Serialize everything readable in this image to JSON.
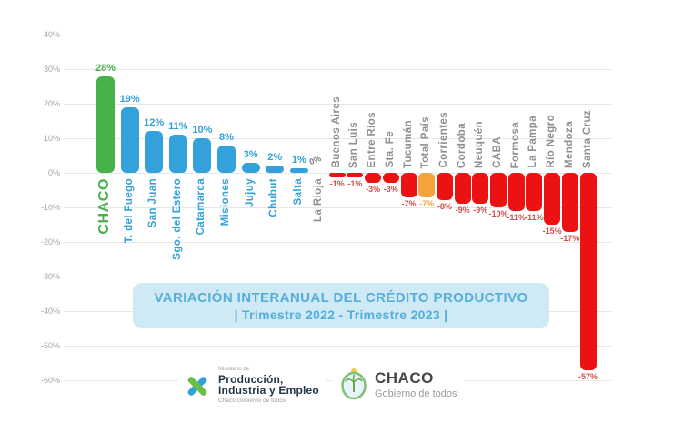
{
  "chart_data": {
    "type": "bar",
    "title": "VARIACIÓN INTERANUAL DEL CRÉDITO PRODUCTIVO",
    "subtitle": "| Trimestre 2022 - Trimestre 2023 |",
    "ylim": [
      -60,
      40
    ],
    "ytick_step": 10,
    "ytick_suffix": "%",
    "grid": true,
    "legend": "none",
    "bars": [
      {
        "label": "CHACO",
        "value": 28,
        "color": "#48b14c",
        "emphasis": true
      },
      {
        "label": "T. del Fuego",
        "value": 19,
        "color": "#33a1da"
      },
      {
        "label": "San Juan",
        "value": 12,
        "color": "#33a1da"
      },
      {
        "label": "Sgo. del Estero",
        "value": 11,
        "color": "#33a1da"
      },
      {
        "label": "Catamarca",
        "value": 10,
        "color": "#33a1da"
      },
      {
        "label": "Misiones",
        "value": 8,
        "color": "#33a1da"
      },
      {
        "label": "Jujuy",
        "value": 3,
        "color": "#33a1da"
      },
      {
        "label": "Chubut",
        "value": 2,
        "color": "#33a1da"
      },
      {
        "label": "Salta",
        "value": 1,
        "color": "#33a1da"
      },
      {
        "label": "La Rioja",
        "value": 0,
        "color": null
      },
      {
        "label": "Buenos Aires",
        "value": -1,
        "color": "#ec1212"
      },
      {
        "label": "San Luis",
        "value": -1,
        "color": "#ec1212"
      },
      {
        "label": "Entre Ríos",
        "value": -3,
        "color": "#ec1212"
      },
      {
        "label": "Sta. Fe",
        "value": -3,
        "color": "#ec1212"
      },
      {
        "label": "Tucumán",
        "value": -7,
        "color": "#ec1212"
      },
      {
        "label": "Total País",
        "value": -7,
        "color": "#f2a33c"
      },
      {
        "label": "Corrientes",
        "value": -8,
        "color": "#ec1212"
      },
      {
        "label": "Cordoba",
        "value": -9,
        "color": "#ec1212"
      },
      {
        "label": "Neuquén",
        "value": -9,
        "color": "#ec1212"
      },
      {
        "label": "CABA",
        "value": -10,
        "color": "#ec1212"
      },
      {
        "label": "Formosa",
        "value": -11,
        "color": "#ec1212"
      },
      {
        "label": "La Pampa",
        "value": -11,
        "color": "#ec1212"
      },
      {
        "label": "Río Negro",
        "value": -15,
        "color": "#ec1212"
      },
      {
        "label": "Mendoza",
        "value": -17,
        "color": "#ec1212"
      },
      {
        "label": "Santa Cruz",
        "value": -57,
        "color": "#ec1212"
      }
    ],
    "value_label_colors": {
      "positive_blue": "#33a1da",
      "positive_green": "#48b14c",
      "negative_red": "#d0504a",
      "negative_orange": "#efa33d",
      "zero_gray": "#77787a",
      "category_gray": "#8d8f92"
    }
  },
  "footer": {
    "ministry": {
      "pre": "Ministerio de",
      "line1": "Producción,",
      "line2": "Industria y Empleo",
      "sub": "Chaco Gobierno de todos",
      "icon_green": "#6abf4b",
      "icon_blue": "#33a0d9"
    },
    "government": {
      "name": "CHACO",
      "tagline": "Gobierno de todos"
    }
  }
}
